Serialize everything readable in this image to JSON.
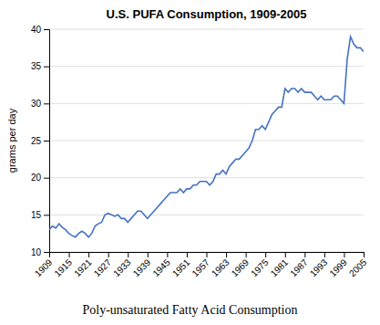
{
  "chart_data": {
    "type": "line",
    "title": "U.S. PUFA Consumption, 1909-2005",
    "ylabel": "grams per day",
    "caption": "Poly-unsaturated Fatty Acid Consumption",
    "color": "#4472C4",
    "grid": true,
    "xlim": [
      1909,
      2005
    ],
    "xticks": [
      1909,
      1915,
      1921,
      1927,
      1933,
      1939,
      1945,
      1951,
      1957,
      1963,
      1969,
      1975,
      1981,
      1987,
      1993,
      1999,
      2005
    ],
    "ylim": [
      10,
      40
    ],
    "yticks": [
      10,
      15,
      20,
      25,
      30,
      35,
      40
    ],
    "x": [
      1909,
      1910,
      1911,
      1912,
      1913,
      1914,
      1915,
      1916,
      1917,
      1918,
      1919,
      1920,
      1921,
      1922,
      1923,
      1924,
      1925,
      1926,
      1927,
      1928,
      1929,
      1930,
      1931,
      1932,
      1933,
      1934,
      1935,
      1936,
      1937,
      1938,
      1939,
      1940,
      1941,
      1942,
      1943,
      1944,
      1945,
      1946,
      1947,
      1948,
      1949,
      1950,
      1951,
      1952,
      1953,
      1954,
      1955,
      1956,
      1957,
      1958,
      1959,
      1960,
      1961,
      1962,
      1963,
      1964,
      1965,
      1966,
      1967,
      1968,
      1969,
      1970,
      1971,
      1972,
      1973,
      1974,
      1975,
      1976,
      1977,
      1978,
      1979,
      1980,
      1981,
      1982,
      1983,
      1984,
      1985,
      1986,
      1987,
      1988,
      1989,
      1990,
      1991,
      1992,
      1993,
      1994,
      1995,
      1996,
      1997,
      1998,
      1999,
      2000,
      2001,
      2002,
      2003,
      2004,
      2005
    ],
    "values": [
      13.0,
      13.5,
      13.2,
      13.8,
      13.3,
      13.0,
      12.5,
      12.2,
      12.0,
      12.5,
      12.8,
      12.5,
      12.0,
      12.5,
      13.5,
      13.8,
      14.0,
      15.0,
      15.2,
      15.0,
      14.8,
      15.0,
      14.5,
      14.5,
      14.0,
      14.5,
      15.0,
      15.5,
      15.5,
      15.0,
      14.5,
      15.0,
      15.5,
      16.0,
      16.5,
      17.0,
      17.5,
      18.0,
      18.0,
      18.0,
      18.5,
      18.0,
      18.5,
      18.5,
      19.0,
      19.0,
      19.5,
      19.5,
      19.5,
      19.0,
      19.5,
      20.5,
      20.5,
      21.0,
      20.5,
      21.5,
      22.0,
      22.5,
      22.5,
      23.0,
      23.5,
      24.0,
      25.0,
      26.5,
      26.5,
      27.0,
      26.5,
      27.5,
      28.5,
      29.0,
      29.5,
      29.5,
      32.0,
      31.5,
      32.0,
      32.0,
      31.5,
      32.0,
      31.5,
      31.5,
      31.5,
      31.0,
      30.5,
      31.0,
      30.5,
      30.5,
      30.5,
      31.0,
      31.0,
      30.5,
      30.0,
      36.0,
      39.0,
      38.0,
      37.5,
      37.5,
      37.0
    ]
  }
}
